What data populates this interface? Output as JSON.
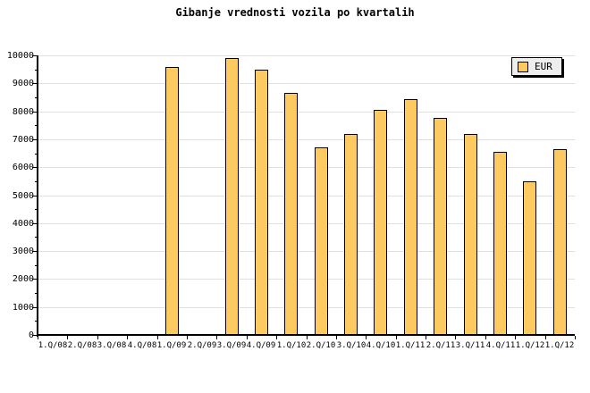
{
  "title": "Gibanje vrednosti vozila po kvartalih",
  "legend": {
    "label": "EUR"
  },
  "chart_data": {
    "type": "bar",
    "title": "Gibanje vrednosti vozila po kvartalih",
    "xlabel": "",
    "ylabel": "",
    "categories": [
      "1.Q/08",
      "2.Q/08",
      "3.Q/08",
      "4.Q/08",
      "1.Q/09",
      "2.Q/09",
      "3.Q/09",
      "4.Q/09",
      "1.Q/10",
      "2.Q/10",
      "3.Q/10",
      "4.Q/10",
      "1.Q/11",
      "2.Q/11",
      "3.Q/11",
      "4.Q/11",
      "1.Q/12",
      "1.Q/12"
    ],
    "series": [
      {
        "name": "EUR",
        "values": [
          null,
          null,
          null,
          null,
          9600,
          null,
          9900,
          9500,
          8650,
          6700,
          7200,
          8050,
          8450,
          7750,
          7200,
          6550,
          5500,
          6650
        ]
      }
    ],
    "ylim": [
      0,
      10000
    ],
    "y_tick_step": 1000,
    "y_minor_tick_step": 500,
    "grid": true,
    "legend_position": "top-right",
    "colors": {
      "background": "#FFFFFF",
      "text": "#000000",
      "axis": "#000000",
      "gridline": "#E0E0E0",
      "bar_fill": "#FDCA62",
      "bar_border": "#000000",
      "legend_bg": "#EEEEEE"
    }
  }
}
